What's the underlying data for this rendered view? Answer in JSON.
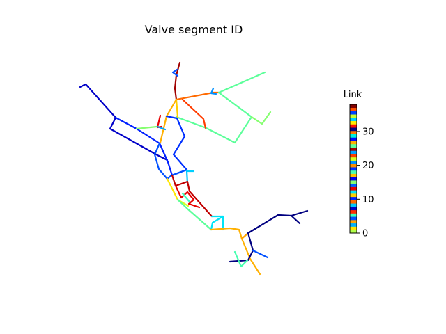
{
  "figure": {
    "title": "Valve segment ID"
  },
  "colorbar": {
    "label": "Link",
    "ticks": [
      "0",
      "10",
      "20",
      "30"
    ],
    "colormap": "jet",
    "color_bands": [
      "#b2ff4a",
      "#ffe500",
      "#00b0ff",
      "#ffa200",
      "#0050ff",
      "#3dffba",
      "#ff2d00",
      "#0000c8",
      "#00c8ff",
      "#ff6a00",
      "#0020ff",
      "#ffd000",
      "#00e4f8",
      "#e80000",
      "#0060ff",
      "#86ff70",
      "#0000f0",
      "#ffc000",
      "#46ffb0",
      "#0030ff",
      "#ff9000",
      "#0090ff",
      "#d4ff22",
      "#ff3c00",
      "#00a0ff",
      "#a00000",
      "#5cff9a",
      "#ffb000",
      "#0008ff",
      "#00f0e0",
      "#ff7800",
      "#000080",
      "#ff1000",
      "#ffee00",
      "#00d0ff",
      "#c8ff30",
      "#0040ff",
      "#ff5000",
      "#800000"
    ]
  },
  "network_links": [
    {
      "color": "#a00000",
      "points": [
        [
          258,
          90
        ],
        [
          253,
          108
        ],
        [
          251,
          127
        ],
        [
          253,
          143
        ]
      ]
    },
    {
      "color": "#0050ff",
      "points": [
        [
          254,
          100
        ],
        [
          248,
          104
        ],
        [
          255,
          109
        ]
      ]
    },
    {
      "color": "#ff6a00",
      "points": [
        [
          253,
          143
        ],
        [
          306,
          133
        ],
        [
          314,
          133
        ]
      ]
    },
    {
      "color": "#0090ff",
      "points": [
        [
          306,
          127
        ],
        [
          303,
          134
        ],
        [
          310,
          135
        ]
      ]
    },
    {
      "color": "#5cff9a",
      "points": [
        [
          314,
          133
        ],
        [
          380,
          104
        ]
      ]
    },
    {
      "color": "#5cff9a",
      "points": [
        [
          314,
          133
        ],
        [
          361,
          168
        ],
        [
          337,
          205
        ],
        [
          296,
          184
        ],
        [
          253,
          168
        ]
      ]
    },
    {
      "color": "#86ff70",
      "points": [
        [
          361,
          168
        ],
        [
          376,
          178
        ],
        [
          388,
          161
        ]
      ]
    },
    {
      "color": "#ff3c00",
      "points": [
        [
          262,
          143
        ],
        [
          292,
          171
        ],
        [
          295,
          184
        ]
      ]
    },
    {
      "color": "#ffd000",
      "points": [
        [
          253,
          143
        ],
        [
          255,
          168
        ]
      ]
    },
    {
      "color": "#ffb000",
      "points": [
        [
          253,
          143
        ],
        [
          239,
          167
        ],
        [
          230,
          205
        ]
      ]
    },
    {
      "color": "#0000c8",
      "points": [
        [
          115,
          125
        ],
        [
          123,
          121
        ],
        [
          166,
          169
        ],
        [
          158,
          185
        ],
        [
          226,
          223
        ],
        [
          240,
          230
        ]
      ]
    },
    {
      "color": "#0020ff",
      "points": [
        [
          166,
          169
        ],
        [
          196,
          185
        ],
        [
          229,
          206
        ],
        [
          241,
          233
        ],
        [
          247,
          252
        ]
      ]
    },
    {
      "color": "#86ff70",
      "points": [
        [
          196,
          185
        ],
        [
          225,
          182
        ]
      ]
    },
    {
      "color": "#e80000",
      "points": [
        [
          230,
          166
        ],
        [
          226,
          183
        ],
        [
          232,
          182
        ]
      ]
    },
    {
      "color": "#00a0ff",
      "points": [
        [
          226,
          182
        ],
        [
          237,
          186
        ]
      ]
    },
    {
      "color": "#0030ff",
      "points": [
        [
          239,
          167
        ],
        [
          254,
          170
        ],
        [
          265,
          196
        ],
        [
          249,
          222
        ],
        [
          268,
          244
        ],
        [
          247,
          252
        ]
      ]
    },
    {
      "color": "#0050ff",
      "points": [
        [
          229,
          206
        ],
        [
          222,
          222
        ],
        [
          228,
          243
        ],
        [
          240,
          257
        ]
      ]
    },
    {
      "color": "#0050ff",
      "points": [
        [
          240,
          257
        ],
        [
          246,
          252
        ],
        [
          268,
          244
        ]
      ]
    },
    {
      "color": "#00d0ff",
      "points": [
        [
          268,
          246
        ],
        [
          278,
          246
        ]
      ]
    },
    {
      "color": "#00c8ff",
      "points": [
        [
          268,
          246
        ],
        [
          269,
          263
        ]
      ]
    },
    {
      "color": "#ffe500",
      "points": [
        [
          240,
          257
        ],
        [
          255,
          287
        ]
      ]
    },
    {
      "color": "#d4ff22",
      "points": [
        [
          255,
          287
        ],
        [
          270,
          296
        ]
      ]
    },
    {
      "color": "#5cff9a",
      "points": [
        [
          255,
          287
        ],
        [
          270,
          301
        ],
        [
          303,
          330
        ]
      ]
    },
    {
      "color": "#c00000",
      "points": [
        [
          247,
          252
        ],
        [
          252,
          267
        ],
        [
          269,
          261
        ],
        [
          272,
          275
        ],
        [
          304,
          311
        ]
      ]
    },
    {
      "color": "#e80000",
      "points": [
        [
          252,
          267
        ],
        [
          260,
          284
        ],
        [
          269,
          276
        ],
        [
          278,
          287
        ],
        [
          271,
          293
        ],
        [
          286,
          298
        ]
      ]
    },
    {
      "color": "#3dffba",
      "points": [
        [
          262,
          278
        ],
        [
          272,
          290
        ]
      ]
    },
    {
      "color": "#00e4f8",
      "points": [
        [
          304,
          311
        ],
        [
          320,
          311
        ],
        [
          320,
          330
        ]
      ]
    },
    {
      "color": "#00e4f8",
      "points": [
        [
          320,
          311
        ],
        [
          305,
          320
        ],
        [
          303,
          330
        ]
      ]
    },
    {
      "color": "#ffb000",
      "points": [
        [
          303,
          330
        ],
        [
          330,
          328
        ],
        [
          343,
          330
        ],
        [
          347,
          343
        ],
        [
          359,
          372
        ],
        [
          373,
          394
        ]
      ]
    },
    {
      "color": "#ffa200",
      "points": [
        [
          347,
          343
        ],
        [
          356,
          335
        ]
      ]
    },
    {
      "color": "#000080",
      "points": [
        [
          356,
          335
        ],
        [
          399,
          309
        ],
        [
          418,
          310
        ],
        [
          441,
          303
        ]
      ]
    },
    {
      "color": "#000080",
      "points": [
        [
          418,
          310
        ],
        [
          430,
          321
        ]
      ]
    },
    {
      "color": "#000080",
      "points": [
        [
          356,
          335
        ],
        [
          363,
          360
        ],
        [
          356,
          374
        ],
        [
          330,
          376
        ]
      ]
    },
    {
      "color": "#0050ff",
      "points": [
        [
          363,
          360
        ],
        [
          384,
          370
        ]
      ]
    },
    {
      "color": "#46ffb0",
      "points": [
        [
          337,
          362
        ],
        [
          346,
          383
        ],
        [
          355,
          374
        ]
      ]
    }
  ]
}
